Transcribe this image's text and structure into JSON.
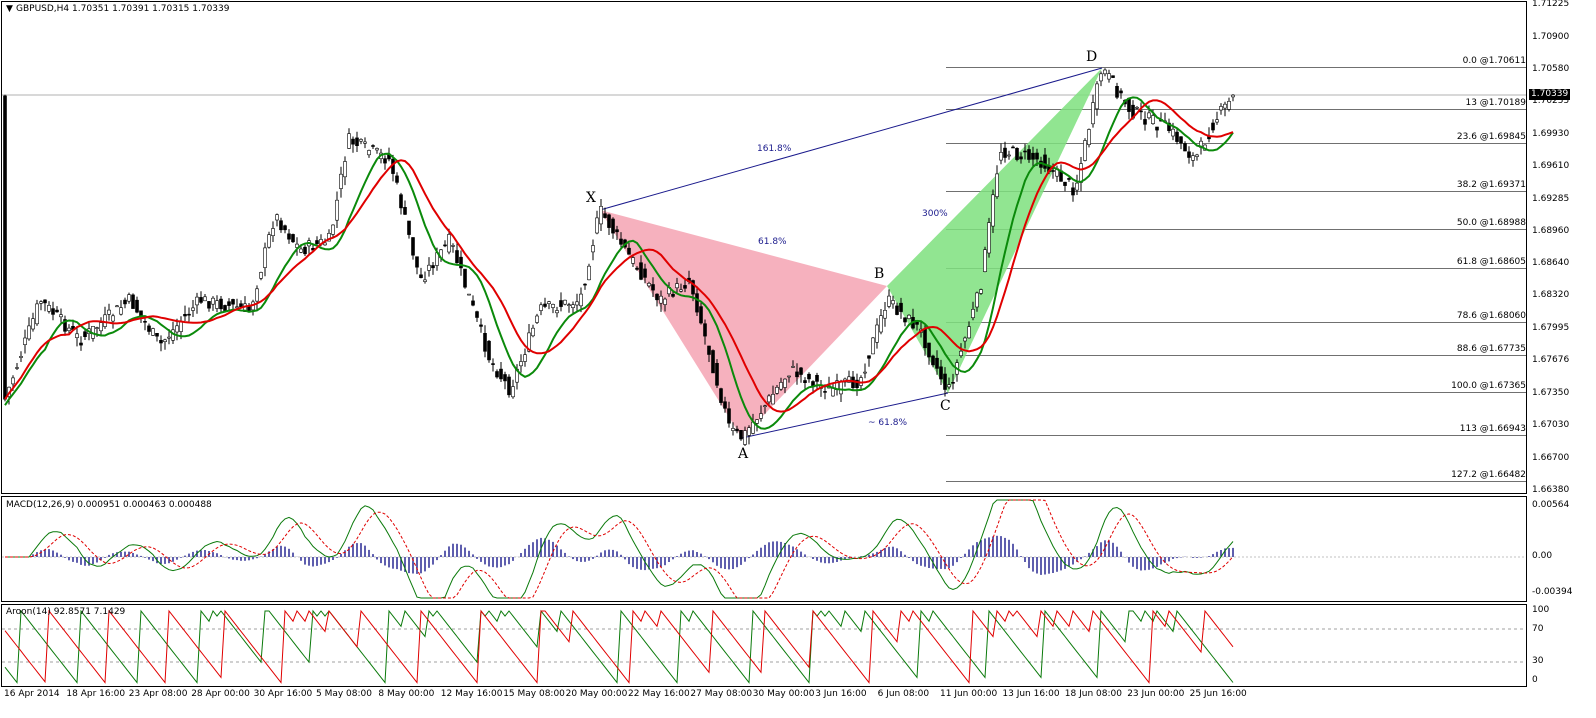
{
  "header": {
    "symbol_info": "GBPUSD,H4  1.70351 1.70391 1.70315 1.70339"
  },
  "price_axis": {
    "labels": [
      "1.71225",
      "1.70900",
      "1.70580",
      "1.70255",
      "1.69930",
      "1.69610",
      "1.69285",
      "1.68960",
      "1.68640",
      "1.68320",
      "1.67995",
      "1.67676",
      "1.67350",
      "1.67030",
      "1.66700",
      "1.66380"
    ],
    "current_price": "1.70339"
  },
  "fibonacci": {
    "levels": [
      {
        "label": "0.0  @1.70611",
        "price": 1.70611
      },
      {
        "label": "13  @1.70189",
        "price": 1.70189
      },
      {
        "label": "23.6  @1.69845",
        "price": 1.69845
      },
      {
        "label": "38.2  @1.69371",
        "price": 1.69371
      },
      {
        "label": "50.0  @1.68988",
        "price": 1.68988
      },
      {
        "label": "61.8  @1.68605",
        "price": 1.68605
      },
      {
        "label": "78.6  @1.68060",
        "price": 1.6806
      },
      {
        "label": "88.6  @1.67735",
        "price": 1.67735
      },
      {
        "label": "100.0  @1.67365",
        "price": 1.67365
      },
      {
        "label": "113  @1.66943",
        "price": 1.66943
      },
      {
        "label": "127.2  @1.66482",
        "price": 1.66482
      }
    ]
  },
  "pattern": {
    "points": {
      "X": "X",
      "A": "A",
      "B": "B",
      "C": "C",
      "D": "D"
    },
    "ratios": {
      "xb": "61.8%",
      "xd": "161.8%",
      "bd": "300%",
      "ac": "~ 61.8%"
    }
  },
  "macd": {
    "label": "MACD(12,26,9) 0.000951 0.000463 0.000488",
    "axis": [
      "0.00564",
      "0.00",
      "-0.00394"
    ]
  },
  "aroon": {
    "label": "Aroon(14) 92.8571 7.1429",
    "axis": [
      "100",
      "70",
      "30",
      "0"
    ]
  },
  "time_axis": [
    "16 Apr 2014",
    "18 Apr 16:00",
    "23 Apr 08:00",
    "28 Apr 00:00",
    "30 Apr 16:00",
    "5 May 08:00",
    "8 May 00:00",
    "12 May 16:00",
    "15 May 08:00",
    "20 May 00:00",
    "22 May 16:00",
    "27 May 08:00",
    "30 May 00:00",
    "3 Jun 16:00",
    "6 Jun 08:00",
    "11 Jun 00:00",
    "13 Jun 16:00",
    "18 Jun 08:00",
    "23 Jun 00:00",
    "25 Jun 16:00"
  ],
  "colors": {
    "bull_ma": "#0b8a0b",
    "bear_ma": "#e00000",
    "pattern_pink": "#f5a3b3",
    "pattern_green": "#7ee07e",
    "line_blue": "#1a1a8c"
  }
}
